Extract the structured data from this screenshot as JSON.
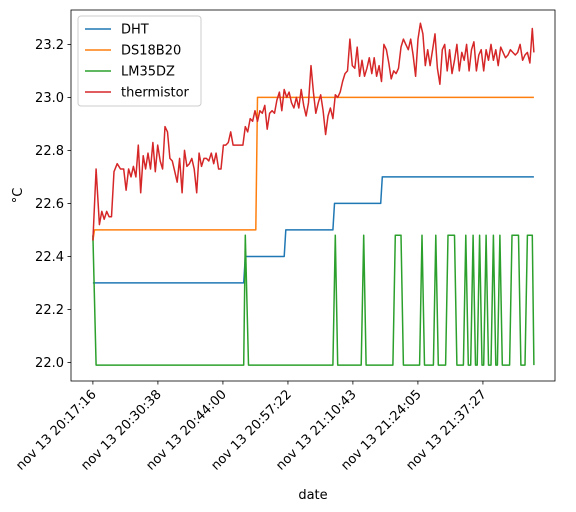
{
  "chart_data": {
    "type": "line",
    "xlabel": "date",
    "ylabel": "°C",
    "x_ticks": [
      {
        "t": 0,
        "label": "nov 13 20:17:16"
      },
      {
        "t": 802,
        "label": "nov 13 20:30:38"
      },
      {
        "t": 1604,
        "label": "nov 13 20:44:00"
      },
      {
        "t": 2406,
        "label": "nov 13 20:57:22"
      },
      {
        "t": 3207,
        "label": "nov 13 21:10:43"
      },
      {
        "t": 4009,
        "label": "nov 13 21:24:05"
      },
      {
        "t": 4811,
        "label": "nov 13 21:37:27"
      }
    ],
    "y_ticks": [
      22.0,
      22.2,
      22.4,
      22.6,
      22.8,
      23.0,
      23.2
    ],
    "xlim": [
      -270,
      5700
    ],
    "ylim": [
      21.93,
      23.33
    ],
    "legend": "upper left",
    "series": [
      {
        "name": "DHT",
        "color": "#1f77b4",
        "points": [
          [
            0,
            22.3
          ],
          [
            1860,
            22.3
          ],
          [
            1880,
            22.4
          ],
          [
            2360,
            22.4
          ],
          [
            2380,
            22.5
          ],
          [
            2960,
            22.5
          ],
          [
            2980,
            22.6
          ],
          [
            3550,
            22.6
          ],
          [
            3570,
            22.7
          ],
          [
            5440,
            22.7
          ]
        ]
      },
      {
        "name": "DS18B20",
        "color": "#ff7f0e",
        "points": [
          [
            0,
            22.46
          ],
          [
            20,
            22.5
          ],
          [
            2010,
            22.5
          ],
          [
            2030,
            23.0
          ],
          [
            5440,
            23.0
          ]
        ]
      },
      {
        "name": "LM35DZ",
        "color": "#2ca02c",
        "points": [
          [
            0,
            22.48
          ],
          [
            40,
            21.99
          ],
          [
            1860,
            21.99
          ],
          [
            1880,
            22.48
          ],
          [
            1920,
            21.99
          ],
          [
            2960,
            21.99
          ],
          [
            2990,
            22.48
          ],
          [
            3020,
            21.99
          ],
          [
            3310,
            21.99
          ],
          [
            3340,
            22.48
          ],
          [
            3370,
            21.99
          ],
          [
            3700,
            21.99
          ],
          [
            3730,
            22.48
          ],
          [
            3800,
            22.48
          ],
          [
            3830,
            21.99
          ],
          [
            4030,
            21.99
          ],
          [
            4060,
            22.48
          ],
          [
            4090,
            21.99
          ],
          [
            4200,
            21.99
          ],
          [
            4230,
            22.48
          ],
          [
            4260,
            21.99
          ],
          [
            4350,
            21.99
          ],
          [
            4380,
            22.48
          ],
          [
            4460,
            22.48
          ],
          [
            4490,
            21.99
          ],
          [
            4570,
            21.99
          ],
          [
            4600,
            22.48
          ],
          [
            4630,
            21.99
          ],
          [
            4660,
            21.99
          ],
          [
            4690,
            22.48
          ],
          [
            4720,
            21.99
          ],
          [
            4740,
            21.99
          ],
          [
            4770,
            22.48
          ],
          [
            4800,
            21.99
          ],
          [
            4820,
            21.99
          ],
          [
            4850,
            22.48
          ],
          [
            4880,
            21.99
          ],
          [
            4910,
            21.99
          ],
          [
            4940,
            22.48
          ],
          [
            4970,
            21.99
          ],
          [
            4990,
            21.99
          ],
          [
            5020,
            22.48
          ],
          [
            5050,
            21.99
          ],
          [
            5140,
            21.99
          ],
          [
            5170,
            22.48
          ],
          [
            5250,
            22.48
          ],
          [
            5280,
            21.99
          ],
          [
            5330,
            21.99
          ],
          [
            5360,
            22.48
          ],
          [
            5420,
            22.48
          ],
          [
            5440,
            21.99
          ]
        ]
      },
      {
        "name": "thermistor",
        "color": "#d62728",
        "points": [
          [
            0,
            22.46
          ],
          [
            40,
            22.73
          ],
          [
            80,
            22.52
          ],
          [
            110,
            22.57
          ],
          [
            140,
            22.54
          ],
          [
            170,
            22.57
          ],
          [
            200,
            22.55
          ],
          [
            230,
            22.55
          ],
          [
            260,
            22.72
          ],
          [
            300,
            22.75
          ],
          [
            340,
            22.73
          ],
          [
            380,
            22.73
          ],
          [
            410,
            22.65
          ],
          [
            440,
            22.73
          ],
          [
            470,
            22.7
          ],
          [
            500,
            22.74
          ],
          [
            530,
            22.7
          ],
          [
            560,
            22.82
          ],
          [
            590,
            22.64
          ],
          [
            620,
            22.78
          ],
          [
            650,
            22.73
          ],
          [
            680,
            22.79
          ],
          [
            710,
            22.73
          ],
          [
            740,
            22.83
          ],
          [
            770,
            22.72
          ],
          [
            800,
            22.82
          ],
          [
            830,
            22.76
          ],
          [
            860,
            22.73
          ],
          [
            890,
            22.89
          ],
          [
            920,
            22.87
          ],
          [
            950,
            22.77
          ],
          [
            980,
            22.76
          ],
          [
            1010,
            22.72
          ],
          [
            1040,
            22.68
          ],
          [
            1070,
            22.77
          ],
          [
            1100,
            22.64
          ],
          [
            1130,
            22.8
          ],
          [
            1160,
            22.74
          ],
          [
            1190,
            22.75
          ],
          [
            1220,
            22.77
          ],
          [
            1250,
            22.73
          ],
          [
            1280,
            22.64
          ],
          [
            1310,
            22.79
          ],
          [
            1340,
            22.74
          ],
          [
            1370,
            22.77
          ],
          [
            1400,
            22.77
          ],
          [
            1430,
            22.76
          ],
          [
            1460,
            22.79
          ],
          [
            1490,
            22.75
          ],
          [
            1520,
            22.79
          ],
          [
            1550,
            22.73
          ],
          [
            1580,
            22.73
          ],
          [
            1610,
            22.82
          ],
          [
            1640,
            22.82
          ],
          [
            1670,
            22.83
          ],
          [
            1700,
            22.87
          ],
          [
            1730,
            22.82
          ],
          [
            1760,
            22.82
          ],
          [
            1790,
            22.82
          ],
          [
            1820,
            22.82
          ],
          [
            1850,
            22.82
          ],
          [
            1880,
            22.89
          ],
          [
            1910,
            22.87
          ],
          [
            1940,
            22.92
          ],
          [
            1970,
            22.91
          ],
          [
            2000,
            22.95
          ],
          [
            2030,
            22.91
          ],
          [
            2060,
            22.95
          ],
          [
            2090,
            22.94
          ],
          [
            2120,
            22.97
          ],
          [
            2150,
            22.88
          ],
          [
            2180,
            22.94
          ],
          [
            2210,
            22.95
          ],
          [
            2240,
            22.94
          ],
          [
            2270,
            22.99
          ],
          [
            2300,
            23.02
          ],
          [
            2330,
            22.95
          ],
          [
            2360,
            23.03
          ],
          [
            2390,
            23.0
          ],
          [
            2420,
            23.02
          ],
          [
            2450,
            22.98
          ],
          [
            2480,
            22.96
          ],
          [
            2510,
            23.0
          ],
          [
            2540,
            22.96
          ],
          [
            2570,
            23.03
          ],
          [
            2600,
            22.97
          ],
          [
            2630,
            22.93
          ],
          [
            2660,
            22.98
          ],
          [
            2690,
            23.12
          ],
          [
            2720,
            23.02
          ],
          [
            2750,
            22.94
          ],
          [
            2780,
            22.98
          ],
          [
            2810,
            23.01
          ],
          [
            2840,
            22.95
          ],
          [
            2870,
            22.86
          ],
          [
            2900,
            22.93
          ],
          [
            2930,
            22.96
          ],
          [
            2960,
            22.92
          ],
          [
            2990,
            23.01
          ],
          [
            3020,
            23.0
          ],
          [
            3050,
            23.02
          ],
          [
            3080,
            23.06
          ],
          [
            3110,
            23.09
          ],
          [
            3140,
            23.1
          ],
          [
            3170,
            23.22
          ],
          [
            3200,
            23.12
          ],
          [
            3230,
            23.11
          ],
          [
            3260,
            23.19
          ],
          [
            3290,
            23.08
          ],
          [
            3320,
            23.14
          ],
          [
            3350,
            23.08
          ],
          [
            3380,
            23.11
          ],
          [
            3410,
            23.15
          ],
          [
            3440,
            23.09
          ],
          [
            3470,
            23.15
          ],
          [
            3500,
            23.08
          ],
          [
            3530,
            23.12
          ],
          [
            3560,
            23.06
          ],
          [
            3590,
            23.2
          ],
          [
            3620,
            23.18
          ],
          [
            3650,
            23.13
          ],
          [
            3680,
            23.07
          ],
          [
            3710,
            23.1
          ],
          [
            3740,
            23.09
          ],
          [
            3770,
            23.11
          ],
          [
            3800,
            23.19
          ],
          [
            3830,
            23.22
          ],
          [
            3860,
            23.2
          ],
          [
            3890,
            23.18
          ],
          [
            3920,
            23.22
          ],
          [
            3950,
            23.16
          ],
          [
            3980,
            23.08
          ],
          [
            4010,
            23.22
          ],
          [
            4040,
            23.28
          ],
          [
            4070,
            23.24
          ],
          [
            4100,
            23.12
          ],
          [
            4130,
            23.18
          ],
          [
            4160,
            23.12
          ],
          [
            4190,
            23.18
          ],
          [
            4220,
            23.24
          ],
          [
            4250,
            23.11
          ],
          [
            4280,
            23.05
          ],
          [
            4310,
            23.18
          ],
          [
            4340,
            23.2
          ],
          [
            4370,
            23.1
          ],
          [
            4400,
            23.18
          ],
          [
            4430,
            23.09
          ],
          [
            4460,
            23.14
          ],
          [
            4490,
            23.2
          ],
          [
            4520,
            23.1
          ],
          [
            4550,
            23.17
          ],
          [
            4580,
            23.14
          ],
          [
            4610,
            23.2
          ],
          [
            4640,
            23.1
          ],
          [
            4670,
            23.18
          ],
          [
            4700,
            23.21
          ],
          [
            4730,
            23.1
          ],
          [
            4760,
            23.16
          ],
          [
            4790,
            23.18
          ],
          [
            4820,
            23.1
          ],
          [
            4850,
            23.18
          ],
          [
            4880,
            23.14
          ],
          [
            4910,
            23.2
          ],
          [
            4940,
            23.14
          ],
          [
            4970,
            23.18
          ],
          [
            5000,
            23.12
          ],
          [
            5030,
            23.19
          ],
          [
            5060,
            23.17
          ],
          [
            5090,
            23.15
          ],
          [
            5120,
            23.16
          ],
          [
            5150,
            23.18
          ],
          [
            5180,
            23.17
          ],
          [
            5210,
            23.16
          ],
          [
            5240,
            23.17
          ],
          [
            5270,
            23.2
          ],
          [
            5300,
            23.14
          ],
          [
            5330,
            23.16
          ],
          [
            5360,
            23.17
          ],
          [
            5390,
            23.13
          ],
          [
            5420,
            23.26
          ],
          [
            5440,
            23.17
          ]
        ]
      }
    ]
  }
}
